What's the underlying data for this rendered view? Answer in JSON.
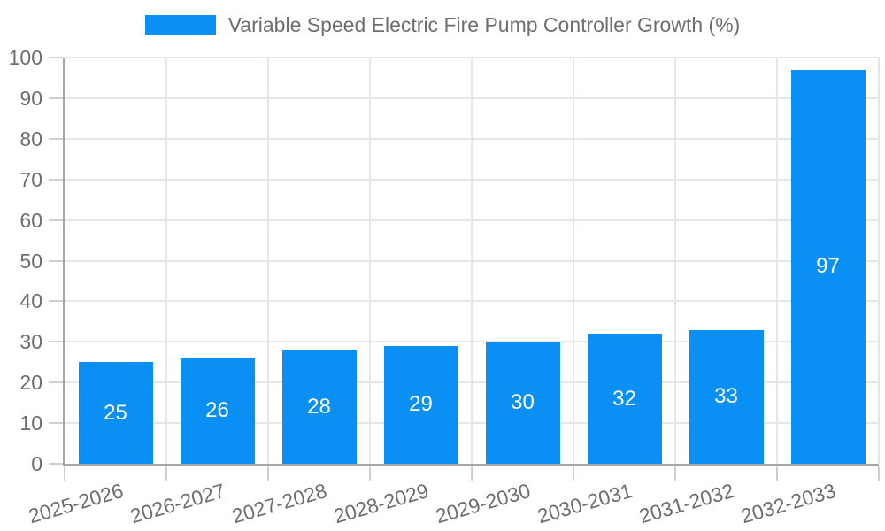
{
  "chart_data": {
    "type": "bar",
    "title": "Variable Speed Electric Fire Pump Controller Growth (%)",
    "categories": [
      "2025-2026",
      "2026-2027",
      "2027-2028",
      "2028-2029",
      "2029-2030",
      "2030-2031",
      "2031-2032",
      "2032-2033"
    ],
    "values": [
      25,
      26,
      28,
      29,
      30,
      32,
      33,
      97
    ],
    "xlabel": "",
    "ylabel": "",
    "ylim": [
      0,
      100
    ],
    "ytick_step": 10,
    "yticks": [
      "0",
      "10",
      "20",
      "30",
      "40",
      "50",
      "60",
      "70",
      "80",
      "90",
      "100"
    ],
    "grid": true,
    "legend_position": "top-center",
    "bar_value_labels_visible": true
  },
  "legend": {
    "label": "Variable Speed Electric Fire Pump Controller Growth (%)"
  },
  "colors": {
    "bar": "#0a90f5",
    "bar_label": "#ffffff",
    "grid": "#e6e6e6",
    "axis_border": "#a6a6a6",
    "tick_mark": "#cfcfcf",
    "tick_label": "#6e6e6e",
    "title": "#6e6e6e",
    "background": "#ffffff"
  }
}
